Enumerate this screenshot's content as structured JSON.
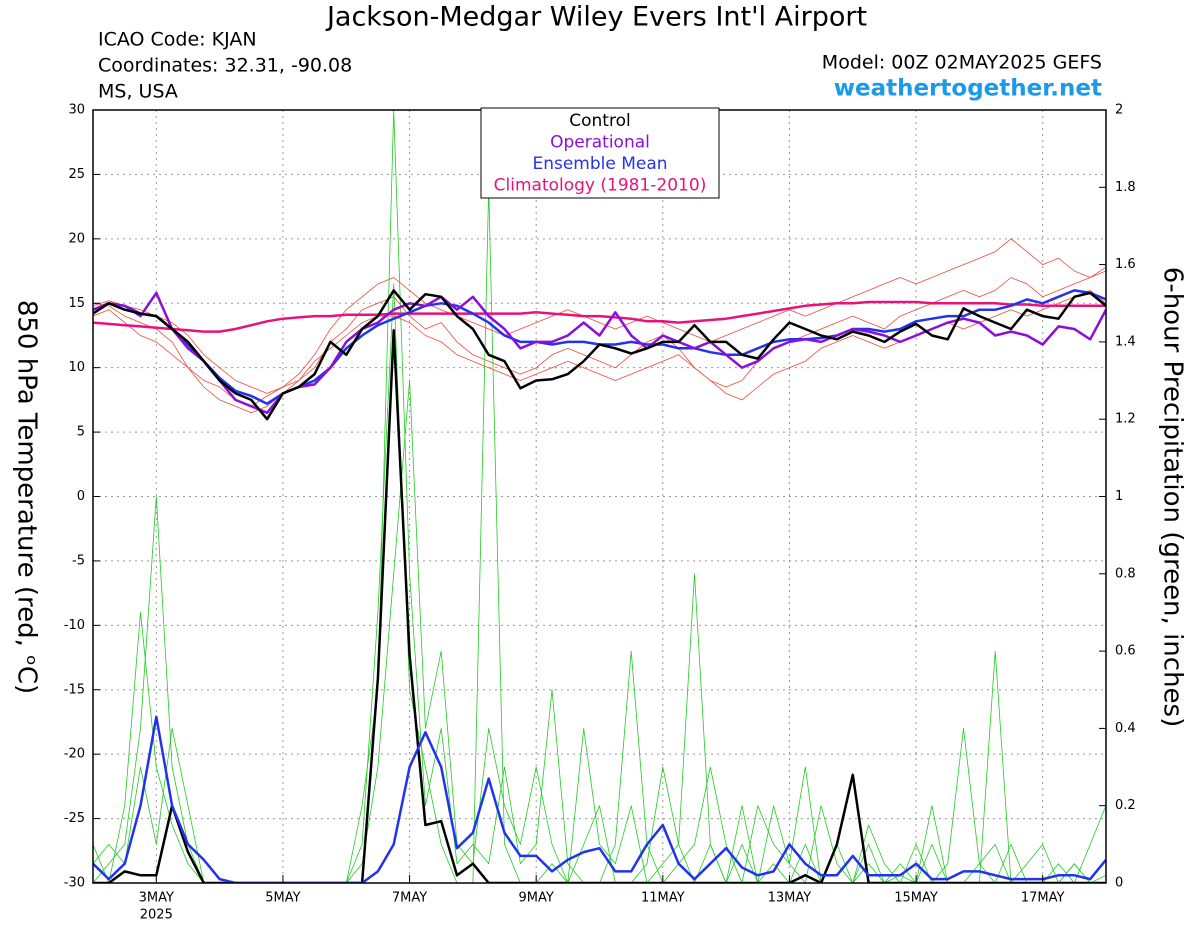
{
  "chart_data": {
    "type": "line",
    "title": "Jackson-Medgar Wiley Evers Int'l Airport",
    "info_lines": [
      "ICAO Code: KJAN",
      "Coordinates: 32.31, -90.08",
      "MS, USA"
    ],
    "model": "Model: 00Z 02MAY2025 GEFS",
    "site": "weathertogether.net",
    "y_label": "850 hPa Temperature (red, ᵒC)",
    "y2_label": "6-hour Precipitation (green, inches)",
    "x_year_label": "2025",
    "grid": true,
    "xlim": [
      0,
      16
    ],
    "xticks": [
      {
        "value": 1,
        "label": "3MAY"
      },
      {
        "value": 3,
        "label": "5MAY"
      },
      {
        "value": 5,
        "label": "7MAY"
      },
      {
        "value": 7,
        "label": "9MAY"
      },
      {
        "value": 9,
        "label": "11MAY"
      },
      {
        "value": 11,
        "label": "13MAY"
      },
      {
        "value": 13,
        "label": "15MAY"
      },
      {
        "value": 15,
        "label": "17MAY"
      }
    ],
    "ylim": [
      -30,
      30
    ],
    "yticks": [
      -30,
      -25,
      -20,
      -15,
      -10,
      -5,
      0,
      5,
      10,
      15,
      20,
      25,
      30
    ],
    "y2lim": [
      0,
      2
    ],
    "y2ticks": [
      0,
      0.2,
      0.4,
      0.6,
      0.8,
      1,
      1.2,
      1.4,
      1.6,
      1.8,
      2
    ],
    "x": [
      0,
      0.25,
      0.5,
      0.75,
      1,
      1.25,
      1.5,
      1.75,
      2,
      2.25,
      2.5,
      2.75,
      3,
      3.25,
      3.5,
      3.75,
      4,
      4.25,
      4.5,
      4.75,
      5,
      5.25,
      5.5,
      5.75,
      6,
      6.25,
      6.5,
      6.75,
      7,
      7.25,
      7.5,
      7.75,
      8,
      8.25,
      8.5,
      8.75,
      9,
      9.25,
      9.5,
      9.75,
      10,
      10.25,
      10.5,
      10.75,
      11,
      11.25,
      11.5,
      11.75,
      12,
      12.25,
      12.5,
      12.75,
      13,
      13.25,
      13.5,
      13.75,
      14,
      14.25,
      14.5,
      14.75,
      15,
      15.25,
      15.5,
      15.75,
      16
    ],
    "series": [
      {
        "color": "#22cc22",
        "axis": "y2",
        "width": 0.8,
        "values": [
          0,
          0.05,
          0.1,
          0.4,
          1.0,
          0.3,
          0.1,
          0,
          0,
          0,
          0,
          0,
          0,
          0,
          0,
          0,
          0,
          0.1,
          0.7,
          1.55,
          0.5,
          0.3,
          0.1,
          0,
          0,
          1.8,
          0.1,
          0,
          0,
          0.05,
          0,
          0.1,
          0.2,
          0,
          0,
          0.05,
          0.3,
          0.1,
          0,
          0.1,
          0,
          0.2,
          0,
          0.05,
          0,
          0.1,
          0,
          0,
          0,
          0.05,
          0,
          0.02,
          0,
          0.1,
          0,
          0,
          0,
          0.6,
          0,
          0,
          0,
          0,
          0.05,
          0,
          0
        ]
      },
      {
        "color": "#22cc22",
        "axis": "y2",
        "width": 0.8,
        "values": [
          0.1,
          0,
          0.2,
          0.7,
          0.3,
          0.15,
          0.05,
          0,
          0,
          0,
          0,
          0,
          0,
          0,
          0,
          0,
          0,
          0.05,
          0.3,
          0.8,
          1.3,
          0.4,
          0.6,
          0.1,
          0.05,
          0.4,
          0.2,
          0.1,
          0.3,
          0.1,
          0,
          0.4,
          0.1,
          0.05,
          0.2,
          0,
          0.05,
          0.1,
          0.8,
          0.1,
          0,
          0.1,
          0,
          0.2,
          0.05,
          0.3,
          0,
          0.1,
          0,
          0.15,
          0.05,
          0,
          0.1,
          0,
          0.05,
          0.4,
          0.05,
          0,
          0.1,
          0,
          0,
          0.05,
          0,
          0.1,
          0.2
        ]
      },
      {
        "color": "#22cc22",
        "axis": "y2",
        "width": 0.8,
        "values": [
          0.05,
          0.1,
          0.05,
          0.3,
          0.1,
          0.4,
          0.2,
          0,
          0,
          0,
          0,
          0,
          0,
          0,
          0,
          0,
          0,
          0.2,
          0.5,
          2,
          0.8,
          0.2,
          0.4,
          0.05,
          0.1,
          0.05,
          0.3,
          0.05,
          0.1,
          0.5,
          0.05,
          0,
          0,
          0.1,
          0.6,
          0.1,
          0,
          0.05,
          0.1,
          0.3,
          0.1,
          0,
          0.2,
          0.1,
          0.05,
          0,
          0.2,
          0.05,
          0,
          0.1,
          0,
          0.05,
          0,
          0.2,
          0,
          0,
          0.05,
          0.1,
          0,
          0.05,
          0.1,
          0,
          0.05,
          0,
          0.02
        ]
      },
      {
        "color": "#000000",
        "axis": "y2",
        "width": 2.5,
        "values": [
          0,
          0,
          0.03,
          0.02,
          0.02,
          0.2,
          0.08,
          0,
          0,
          0,
          0,
          0,
          0,
          0,
          0,
          0,
          0,
          0,
          0.53,
          1.43,
          0.59,
          0.15,
          0.16,
          0.02,
          0.05,
          0,
          0,
          0,
          0,
          0,
          0,
          0,
          0,
          0,
          0,
          0,
          0,
          0,
          0,
          0,
          0,
          0,
          0,
          0,
          0,
          0.02,
          0,
          0.1,
          0.28,
          0,
          0,
          0,
          0,
          0,
          0,
          0,
          0,
          0,
          0,
          0,
          0,
          0,
          0,
          0,
          0
        ]
      },
      {
        "color": "#2233ee",
        "axis": "y2",
        "width": 2.5,
        "values": [
          0.05,
          0.01,
          0.05,
          0.2,
          0.43,
          0.2,
          0.1,
          0.06,
          0.01,
          0,
          0,
          0,
          0,
          0,
          0,
          0,
          0,
          0,
          0.03,
          0.1,
          0.3,
          0.39,
          0.3,
          0.09,
          0.13,
          0.27,
          0.13,
          0.07,
          0.07,
          0.03,
          0.06,
          0.08,
          0.09,
          0.03,
          0.03,
          0.1,
          0.15,
          0.05,
          0.01,
          0.05,
          0.09,
          0.04,
          0.02,
          0.03,
          0.1,
          0.05,
          0.02,
          0.02,
          0.07,
          0.02,
          0.02,
          0.02,
          0.05,
          0.01,
          0.01,
          0.03,
          0.03,
          0.02,
          0.01,
          0.01,
          0.01,
          0.02,
          0.02,
          0.01,
          0.06
        ]
      },
      {
        "color": "#f04a3a",
        "width": 0.8,
        "values": [
          15,
          14.8,
          14,
          13.5,
          13,
          12,
          10,
          9,
          8.5,
          7.5,
          7,
          7.8,
          8.5,
          9,
          10,
          12,
          13,
          14.5,
          15,
          15.5,
          14,
          13,
          13.5,
          12,
          11,
          10.5,
          10,
          9.5,
          10,
          11,
          11.5,
          11,
          10.5,
          10,
          11,
          12,
          12.5,
          11.5,
          10,
          9,
          8.5,
          9,
          10.5,
          11.5,
          12,
          12.5,
          13,
          13.5,
          14,
          13.5,
          13,
          14,
          14.5,
          15,
          15.5,
          16,
          15.5,
          16,
          17,
          16.5,
          15.5,
          16,
          16.5,
          17,
          17.5
        ]
      },
      {
        "color": "#f04a3a",
        "width": 0.8,
        "values": [
          14,
          14.5,
          13.5,
          12.5,
          12,
          11,
          10,
          8.5,
          7.5,
          7,
          6.5,
          7,
          8,
          9,
          10.5,
          11.5,
          12.5,
          13.5,
          14,
          14,
          13.5,
          12.5,
          12,
          11,
          10.5,
          10,
          9.5,
          9,
          9.5,
          10,
          10.5,
          10,
          9.5,
          9,
          9.5,
          10,
          10.5,
          11,
          10,
          9,
          8,
          7.5,
          8.5,
          9.5,
          10,
          10.5,
          11.5,
          12,
          12.5,
          12,
          11.5,
          12,
          12.5,
          13,
          13.5,
          13,
          13.5,
          14,
          14.5,
          14,
          14.5,
          15,
          15.5,
          16,
          15
        ]
      },
      {
        "color": "#f04a3a",
        "width": 0.8,
        "values": [
          14.8,
          15.2,
          14.8,
          14.5,
          14,
          13.5,
          12.5,
          11,
          10,
          9,
          8.5,
          8,
          8.5,
          9.5,
          11,
          13,
          14.5,
          15.5,
          16.5,
          17,
          16,
          15,
          14.5,
          14,
          13.5,
          13,
          12.5,
          13,
          13.5,
          14,
          14.5,
          14,
          13.5,
          13,
          13.5,
          14,
          13.5,
          13,
          12.5,
          12,
          12.5,
          13,
          13.5,
          14,
          14.5,
          14,
          14.5,
          15,
          15.5,
          16,
          16.5,
          17,
          16.5,
          17,
          17.5,
          18,
          18.5,
          19,
          20,
          19,
          18,
          18.5,
          17.5,
          17,
          17.8
        ]
      },
      {
        "name": "Climatology (1981-2010)",
        "color": "#e8127c",
        "width": 2.5,
        "values": [
          13.5,
          13.4,
          13.3,
          13.2,
          13.1,
          13,
          12.9,
          12.8,
          12.8,
          13,
          13.3,
          13.6,
          13.8,
          13.9,
          14,
          14,
          14.1,
          14.1,
          14.1,
          14.2,
          14.2,
          14.2,
          14.2,
          14.2,
          14.2,
          14.2,
          14.2,
          14.2,
          14.3,
          14.2,
          14.1,
          14,
          14,
          13.9,
          13.8,
          13.6,
          13.6,
          13.5,
          13.6,
          13.7,
          13.8,
          14,
          14.2,
          14.4,
          14.6,
          14.8,
          14.9,
          15,
          15,
          15.1,
          15.1,
          15.1,
          15.1,
          15,
          15,
          15,
          15,
          15,
          14.9,
          14.9,
          14.8,
          14.8,
          14.8,
          14.8,
          14.8
        ]
      },
      {
        "name": "Ensemble Mean",
        "color": "#2233ee",
        "width": 2.5,
        "values": [
          14.5,
          15,
          14.8,
          14.2,
          14,
          13,
          11.8,
          10.5,
          9.2,
          8.2,
          7.8,
          7.2,
          8,
          8.5,
          9,
          10,
          11.5,
          12.5,
          13.3,
          13.8,
          14.3,
          14.8,
          15,
          14.8,
          14.2,
          13.5,
          12.5,
          12,
          12,
          11.8,
          12,
          12,
          11.8,
          11.8,
          12,
          11.8,
          11.8,
          11.5,
          11.5,
          11.2,
          11,
          11,
          11.5,
          12,
          12.2,
          12.2,
          12.3,
          12.5,
          13,
          13,
          12.8,
          13,
          13.6,
          13.8,
          14,
          14,
          14.5,
          14.5,
          14.8,
          15.3,
          15,
          15.5,
          16,
          15.8,
          15.3
        ]
      },
      {
        "name": "Operational",
        "color": "#8a10d8",
        "width": 2.5,
        "values": [
          14.5,
          15,
          14.8,
          14,
          15.8,
          13,
          11.5,
          10.5,
          9,
          7.5,
          7,
          6.5,
          8,
          8.5,
          8.7,
          10,
          12,
          13,
          13.5,
          14.5,
          15,
          14.8,
          15.5,
          14.5,
          15.5,
          14,
          13,
          11.5,
          12,
          12,
          12.5,
          13.5,
          12.5,
          14.3,
          12.5,
          11.5,
          12.5,
          12,
          11.5,
          12,
          11,
          10,
          10.5,
          11.5,
          12,
          12.2,
          12,
          12.5,
          13,
          12.8,
          12.5,
          12,
          12.5,
          13,
          13.5,
          13.8,
          13.5,
          12.5,
          12.8,
          12.5,
          11.8,
          13.2,
          13,
          12.2,
          14.5
        ]
      },
      {
        "name": "Control",
        "color": "#000000",
        "width": 2.5,
        "values": [
          14.2,
          15,
          14.5,
          14.2,
          14,
          13,
          12,
          10.5,
          9,
          8,
          7.5,
          6,
          8,
          8.5,
          9.5,
          12,
          11,
          13,
          14,
          16,
          14.5,
          15.7,
          15.5,
          14,
          13,
          11,
          10.5,
          8.4,
          9,
          9.1,
          9.5,
          10.5,
          11.8,
          11.5,
          11.1,
          11.5,
          12,
          12,
          13.3,
          12,
          12,
          11,
          10.7,
          12.2,
          13.5,
          13,
          12.5,
          12.2,
          12.8,
          12.5,
          12,
          12.8,
          13.4,
          12.5,
          12.2,
          14.6,
          14,
          13.5,
          13,
          14.5,
          14,
          13.8,
          15.5,
          15.8,
          14.8
        ]
      }
    ],
    "legend": [
      11,
      10,
      9,
      8
    ]
  }
}
